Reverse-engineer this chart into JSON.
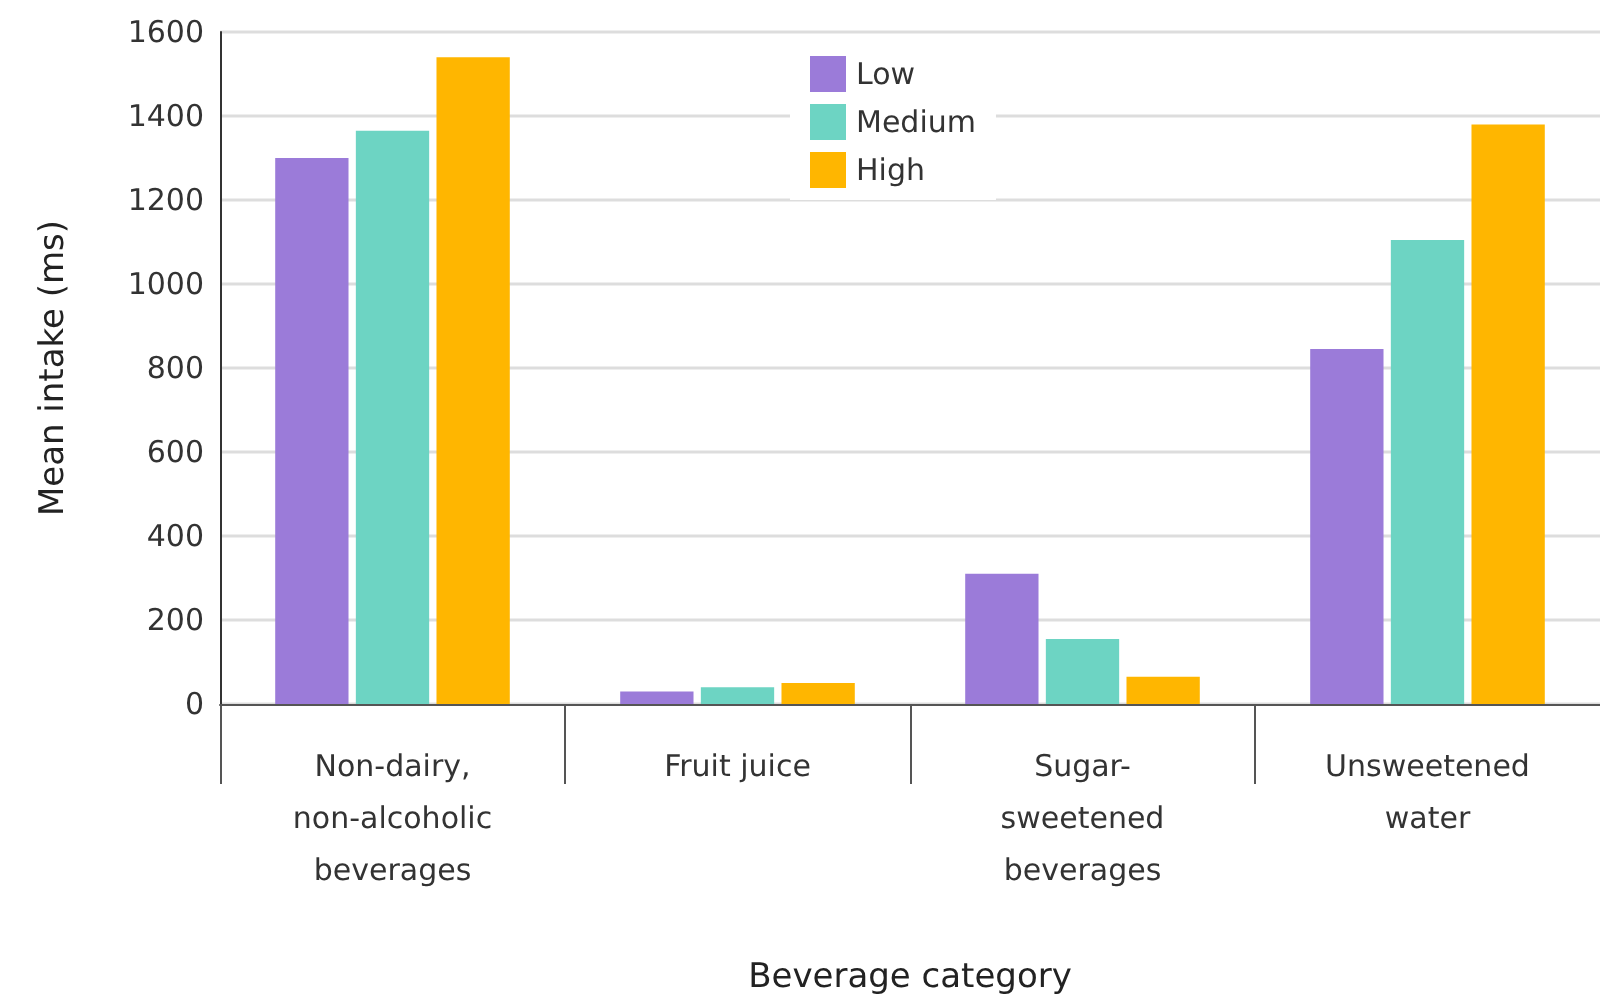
{
  "chart_data": {
    "type": "bar",
    "xlabel": "Beverage category",
    "ylabel": "Mean intake (ms)",
    "categories": [
      "Non-dairy,\nnon-alcoholic\nbeverages",
      "Fruit juice",
      "Sugar-\nsweetened\nbeverages",
      "Unsweetened\nwater"
    ],
    "series": [
      {
        "name": "Low",
        "color": "#9b7bd9",
        "values": [
          1300,
          30,
          310,
          845
        ]
      },
      {
        "name": "Medium",
        "color": "#6dd4c3",
        "values": [
          1365,
          40,
          155,
          1105
        ]
      },
      {
        "name": "High",
        "color": "#ffb600",
        "values": [
          1540,
          50,
          65,
          1380
        ]
      }
    ],
    "ylim": [
      0,
      1600
    ],
    "yticks": [
      0,
      200,
      400,
      600,
      800,
      1000,
      1200,
      1400,
      1600
    ],
    "grid": "y",
    "legend": "top"
  }
}
